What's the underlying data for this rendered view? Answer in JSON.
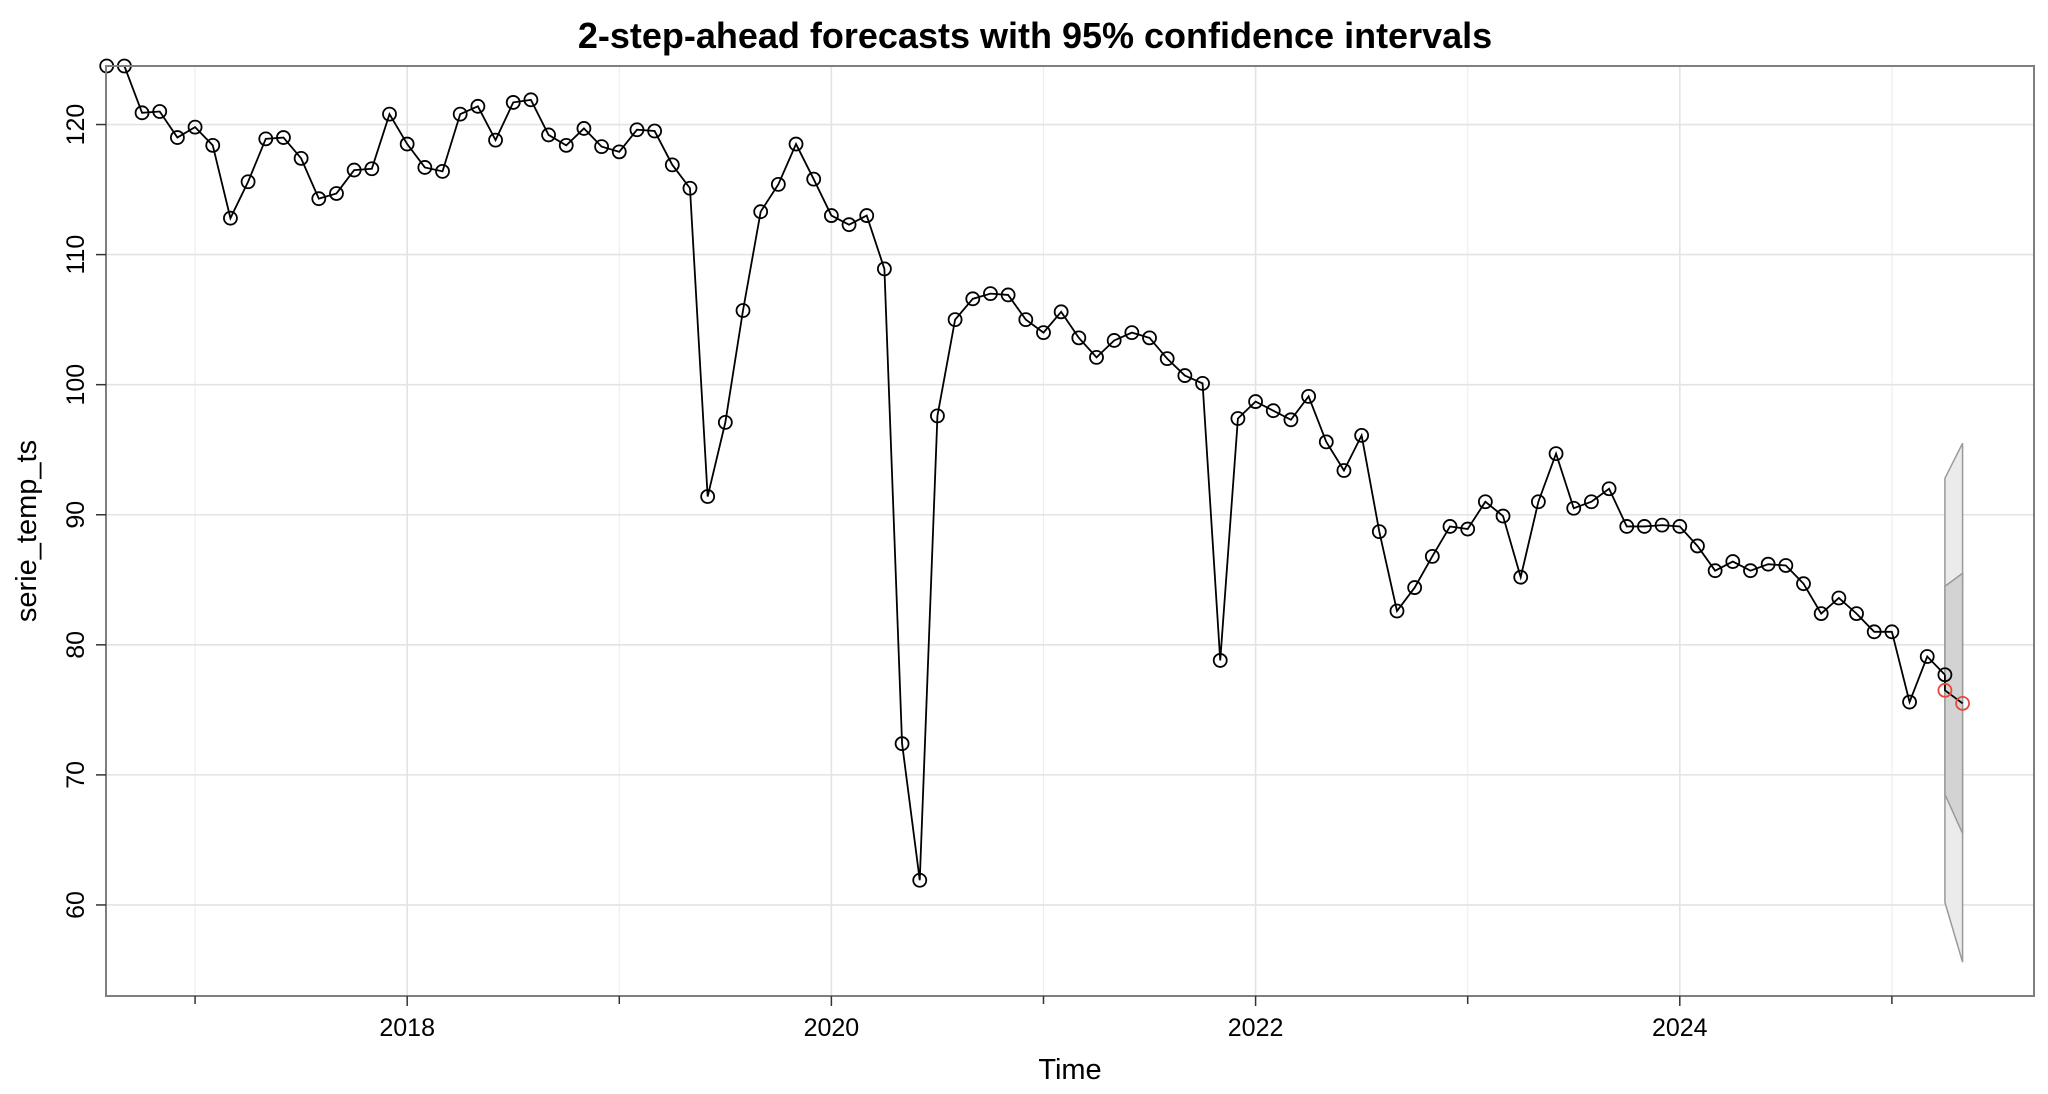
{
  "chart_data": {
    "type": "line",
    "title": "2-step-ahead forecasts with 95% confidence intervals",
    "xlabel": "Time",
    "ylabel": "serie_temp_ts",
    "xlim": [
      2016.58,
      2025.67
    ],
    "ylim": [
      53,
      124.5
    ],
    "x_ticks": [
      2018,
      2020,
      2022,
      2024
    ],
    "x_tick_labels": [
      "2018",
      "2020",
      "2022",
      "2024"
    ],
    "x_minor_ticks": [
      2017,
      2019,
      2021,
      2023,
      2025
    ],
    "y_ticks": [
      60,
      70,
      80,
      90,
      100,
      110,
      120
    ],
    "y_tick_labels": [
      "60",
      "70",
      "80",
      "90",
      "100",
      "110",
      "120"
    ],
    "grid": true,
    "legend": "none",
    "series": [
      {
        "start": 2016.5833,
        "frequency": 12,
        "values": [
          124.5,
          124.5,
          120.9,
          121.0,
          119.0,
          119.8,
          118.4,
          112.8,
          115.6,
          118.9,
          119.0,
          117.4,
          114.3,
          114.7,
          116.5,
          116.6,
          120.8,
          118.5,
          116.7,
          116.4,
          120.8,
          121.4,
          118.8,
          121.7,
          121.9,
          119.2,
          118.4,
          119.7,
          118.3,
          117.9,
          119.6,
          119.5,
          116.9,
          115.1,
          91.4,
          97.1,
          105.7,
          113.3,
          115.4,
          118.5,
          115.8,
          113.0,
          112.3,
          113.0,
          108.9,
          72.4,
          61.9,
          97.6,
          105.0,
          106.6,
          107.0,
          106.9,
          105.0,
          104.0,
          105.6,
          103.6,
          102.1,
          103.4,
          104.0,
          103.6,
          102.0,
          100.7,
          100.1,
          78.8,
          97.4,
          98.7,
          98.0,
          97.3,
          99.1,
          95.6,
          93.4,
          96.1,
          88.7,
          82.6,
          84.4,
          86.8,
          89.1,
          88.9,
          91.0,
          89.9,
          85.2,
          91.0,
          94.7,
          90.5,
          91.0,
          92.0,
          89.1,
          89.1,
          89.2,
          89.1,
          87.6,
          85.7,
          86.4,
          85.7,
          86.2,
          86.1,
          84.7,
          82.4,
          83.6,
          82.4,
          81.0,
          81.0,
          75.6,
          79.1,
          77.7
        ]
      }
    ],
    "forecast": {
      "x": [
        2025.25,
        2025.3333
      ],
      "mean": [
        76.5,
        75.5
      ],
      "lower_80": [
        68.5,
        65.5
      ],
      "upper_80": [
        84.5,
        85.5
      ],
      "lower_95": [
        60.2,
        55.6
      ],
      "upper_95": [
        92.8,
        95.5
      ]
    },
    "colors": {
      "observed": "#000000",
      "forecast": "#e8483b",
      "ci_95": "#ebebeb",
      "ci_80": "#d3d3d3"
    }
  }
}
